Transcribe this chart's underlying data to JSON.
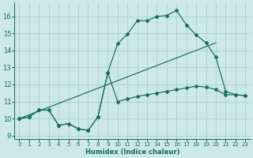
{
  "xlabel": "Humidex (Indice chaleur)",
  "bg_color": "#cce8e8",
  "grid_color": "#aacfcf",
  "line_color": "#1a6b60",
  "xlim": [
    -0.5,
    23.5
  ],
  "ylim": [
    8.8,
    16.8
  ],
  "xticks": [
    0,
    1,
    2,
    3,
    4,
    5,
    6,
    7,
    8,
    9,
    10,
    11,
    12,
    13,
    14,
    15,
    16,
    17,
    18,
    19,
    20,
    21,
    22,
    23
  ],
  "yticks": [
    9,
    10,
    11,
    12,
    13,
    14,
    15,
    16
  ],
  "curve1_x": [
    0,
    1,
    2,
    3,
    4,
    5,
    6,
    7,
    8,
    9,
    10,
    11,
    12,
    13,
    14,
    15,
    16,
    17,
    18,
    19,
    20,
    21,
    22,
    23
  ],
  "curve1_y": [
    10.0,
    10.1,
    10.5,
    10.5,
    9.6,
    9.7,
    9.4,
    9.3,
    10.1,
    12.7,
    11.0,
    11.15,
    11.3,
    11.4,
    11.5,
    11.6,
    11.7,
    11.8,
    11.9,
    11.85,
    11.7,
    11.4,
    11.4,
    11.35
  ],
  "curve2_x": [
    0,
    1,
    2,
    3,
    4,
    5,
    6,
    7,
    8,
    9,
    10,
    11,
    12,
    13,
    14,
    15,
    16,
    17,
    18,
    19,
    20,
    21,
    22,
    23
  ],
  "curve2_y": [
    10.0,
    10.1,
    10.5,
    10.5,
    9.6,
    9.7,
    9.4,
    9.3,
    10.1,
    12.7,
    14.4,
    14.95,
    15.75,
    15.75,
    16.0,
    16.05,
    16.35,
    15.5,
    14.9,
    14.45,
    13.6,
    11.6,
    11.4,
    11.35
  ],
  "curve3_x": [
    0,
    20
  ],
  "curve3_y": [
    10.0,
    14.45
  ]
}
